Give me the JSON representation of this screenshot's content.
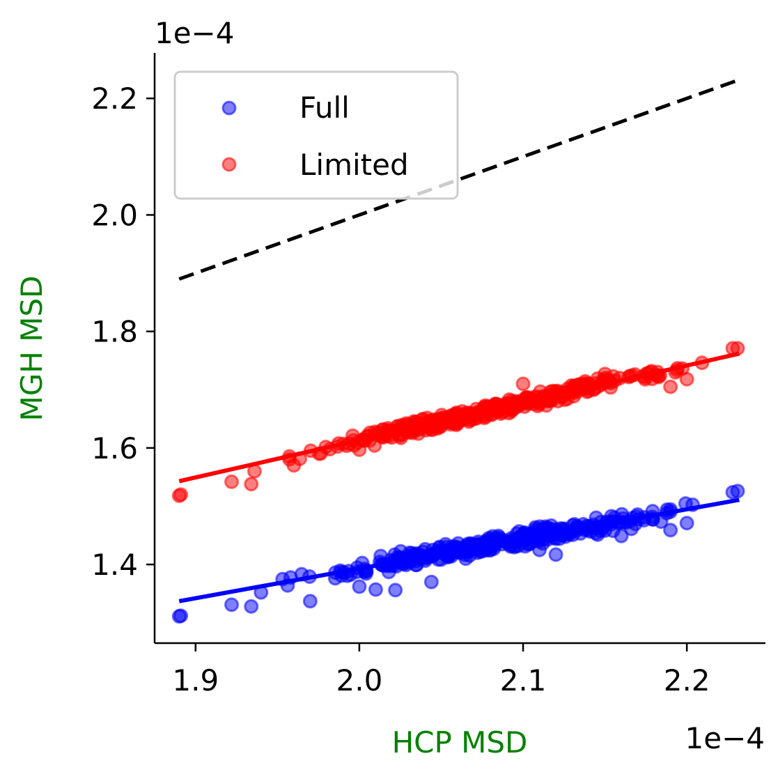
{
  "chart_data": {
    "type": "scatter",
    "title": "",
    "xlabel": "HCP MSD",
    "ylabel": "MGH MSD",
    "x_offset_label": "1e−4",
    "y_offset_label": "1e−4",
    "xlim": [
      1.875,
      2.248
    ],
    "ylim": [
      1.265,
      2.278
    ],
    "x_ticks": [
      1.9,
      2.0,
      2.1,
      2.2
    ],
    "x_tick_labels": [
      "1.9",
      "2.0",
      "2.1",
      "2.2"
    ],
    "y_ticks": [
      1.4,
      1.6,
      1.8,
      2.0,
      2.2
    ],
    "y_tick_labels": [
      "1.4",
      "1.6",
      "1.8",
      "2.0",
      "2.2"
    ],
    "grid": false,
    "legend_position": "top-left",
    "label_color": "#008000",
    "reference_line": {
      "style": "dashed",
      "color": "#000000",
      "x": [
        1.89,
        2.232
      ],
      "y": [
        1.89,
        2.232
      ]
    },
    "series": [
      {
        "name": "Full",
        "color": "#0000ff",
        "fit": {
          "x": [
            1.89,
            2.232
          ],
          "y": [
            1.337,
            1.511
          ]
        },
        "intercept": 1.337,
        "slope": 0.509,
        "n_points": 340,
        "noise": 0.011,
        "extra_points": [
          [
            1.89,
            1.311
          ],
          [
            1.891,
            1.312
          ],
          [
            1.922,
            1.331
          ],
          [
            1.934,
            1.328
          ],
          [
            1.94,
            1.352
          ],
          [
            1.97,
            1.337
          ],
          [
            2.0,
            1.362
          ],
          [
            2.01,
            1.357
          ],
          [
            2.022,
            1.356
          ],
          [
            2.044,
            1.37
          ],
          [
            2.12,
            1.417
          ],
          [
            2.11,
            1.425
          ],
          [
            2.19,
            1.459
          ],
          [
            2.2,
            1.471
          ],
          [
            2.228,
            1.524
          ],
          [
            2.231,
            1.526
          ],
          [
            2.16,
            1.449
          ],
          [
            2.065,
            1.41
          ]
        ]
      },
      {
        "name": "Limited",
        "color": "#ff0000",
        "fit": {
          "x": [
            1.89,
            2.232
          ],
          "y": [
            1.543,
            1.762
          ]
        },
        "intercept": 1.543,
        "slope": 0.64,
        "n_points": 340,
        "noise": 0.011,
        "extra_points": [
          [
            1.89,
            1.518
          ],
          [
            1.891,
            1.52
          ],
          [
            1.922,
            1.542
          ],
          [
            1.934,
            1.538
          ],
          [
            1.936,
            1.56
          ],
          [
            1.96,
            1.57
          ],
          [
            2.0,
            1.597
          ],
          [
            2.06,
            1.645
          ],
          [
            2.1,
            1.71
          ],
          [
            2.11,
            1.675
          ],
          [
            2.2,
            1.718
          ],
          [
            2.228,
            1.771
          ],
          [
            2.231,
            1.771
          ],
          [
            2.19,
            1.705
          ],
          [
            2.15,
            1.727
          ]
        ]
      }
    ]
  }
}
